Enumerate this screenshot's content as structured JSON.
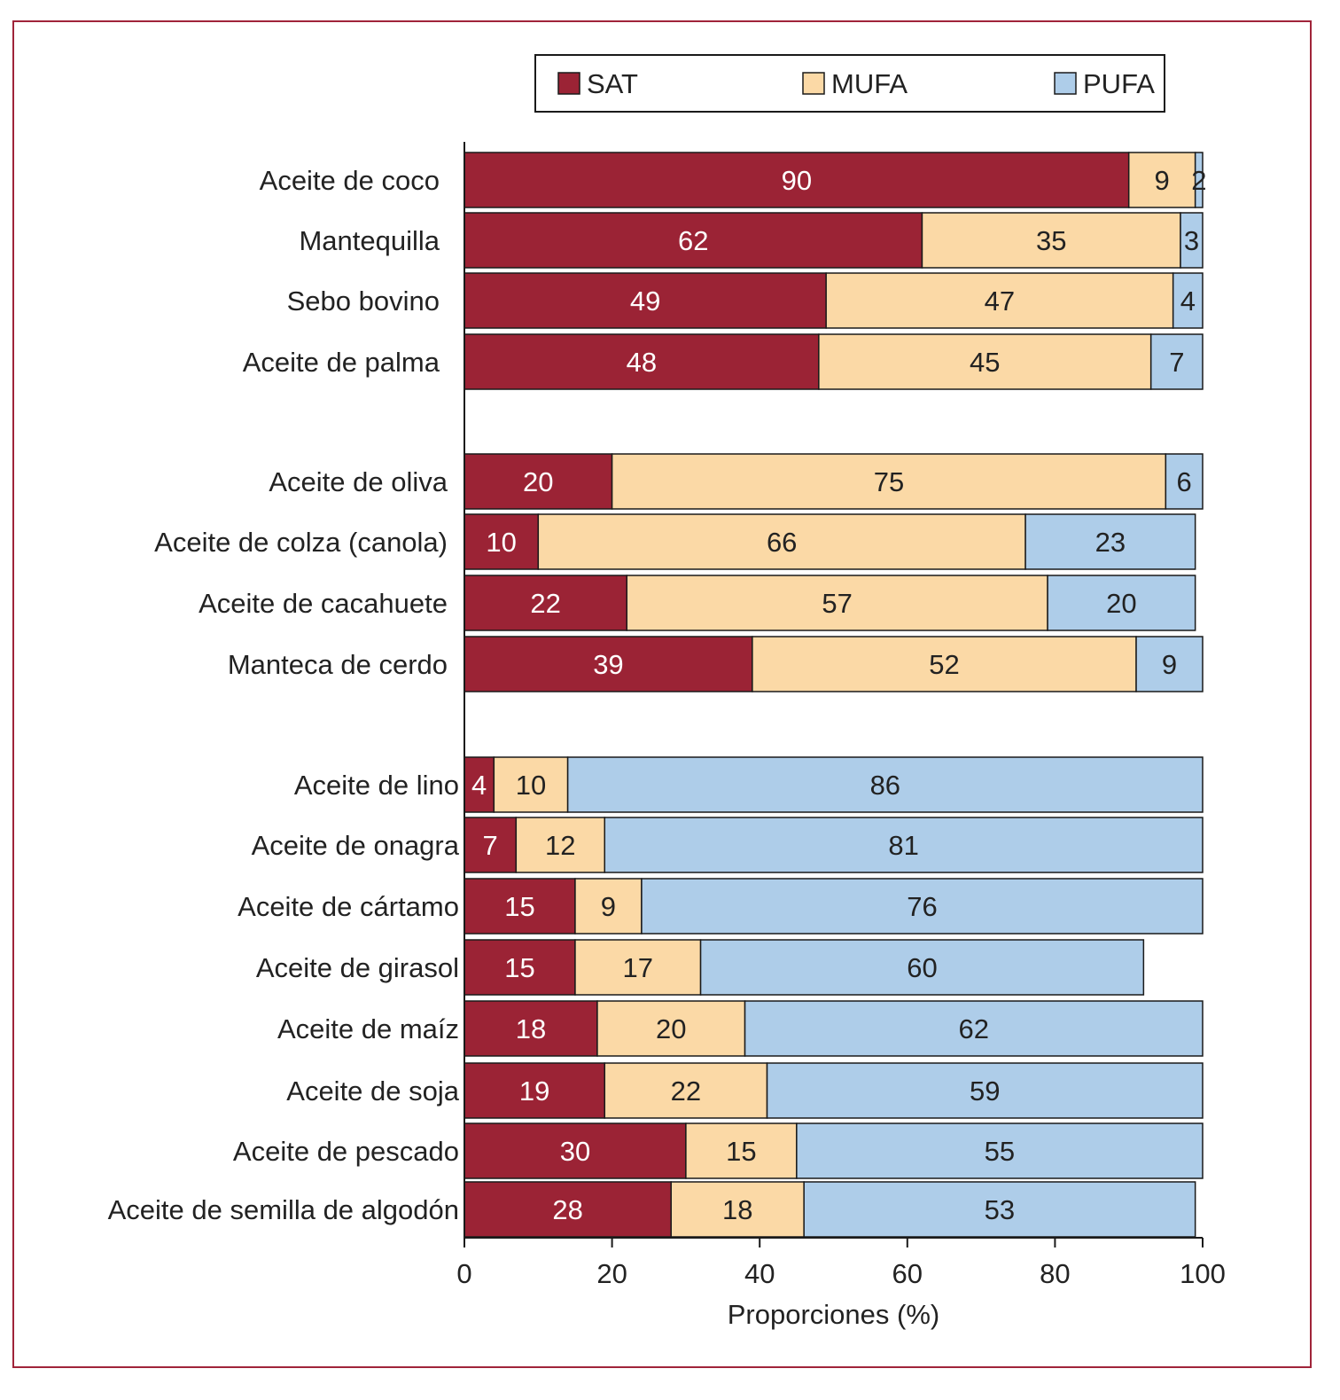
{
  "chart_data": {
    "type": "bar",
    "orientation": "horizontal",
    "stacked": true,
    "xlabel": "Proporciones (%)",
    "xlim": [
      0,
      100
    ],
    "xticks": [
      0,
      20,
      40,
      60,
      80,
      100
    ],
    "legend": {
      "placement": "top-right",
      "entries": [
        {
          "name": "SAT",
          "color": "#9b2335"
        },
        {
          "name": "MUFA",
          "color": "#fbd9a6"
        },
        {
          "name": "PUFA",
          "color": "#aecde9"
        }
      ]
    },
    "label_colors": {
      "SAT": "#ffffff",
      "MUFA": "#222222",
      "PUFA": "#222222"
    },
    "groups": [
      {
        "categories": [
          "Aceite de coco",
          "Mantequilla",
          "Sebo bovino",
          "Aceite de palma"
        ]
      },
      {
        "categories": [
          "Aceite de oliva",
          "Aceite de colza (canola)",
          "Aceite de cacahuete",
          "Manteca de cerdo"
        ]
      },
      {
        "categories": [
          "Aceite de lino",
          "Aceite de onagra",
          "Aceite de cártamo",
          "Aceite de girasol",
          "Aceite de maíz",
          "Aceite de soja",
          "Aceite de pescado",
          "Aceite de semilla de algodón"
        ]
      }
    ],
    "categories": [
      "Aceite de coco",
      "Mantequilla",
      "Sebo bovino",
      "Aceite de palma",
      "Aceite de oliva",
      "Aceite de colza (canola)",
      "Aceite de cacahuete",
      "Manteca de cerdo",
      "Aceite de lino",
      "Aceite de onagra",
      "Aceite de cártamo",
      "Aceite de girasol",
      "Aceite de maíz",
      "Aceite de soja",
      "Aceite de pescado",
      "Aceite de semilla de algodón"
    ],
    "series": [
      {
        "name": "SAT",
        "values": [
          90,
          62,
          49,
          48,
          20,
          10,
          22,
          39,
          4,
          7,
          15,
          15,
          18,
          19,
          30,
          28
        ]
      },
      {
        "name": "MUFA",
        "values": [
          9,
          35,
          47,
          45,
          75,
          66,
          57,
          52,
          10,
          12,
          9,
          17,
          20,
          22,
          15,
          18
        ]
      },
      {
        "name": "PUFA",
        "values": [
          2,
          3,
          4,
          7,
          6,
          23,
          20,
          9,
          86,
          81,
          76,
          60,
          62,
          59,
          55,
          53
        ]
      }
    ]
  }
}
